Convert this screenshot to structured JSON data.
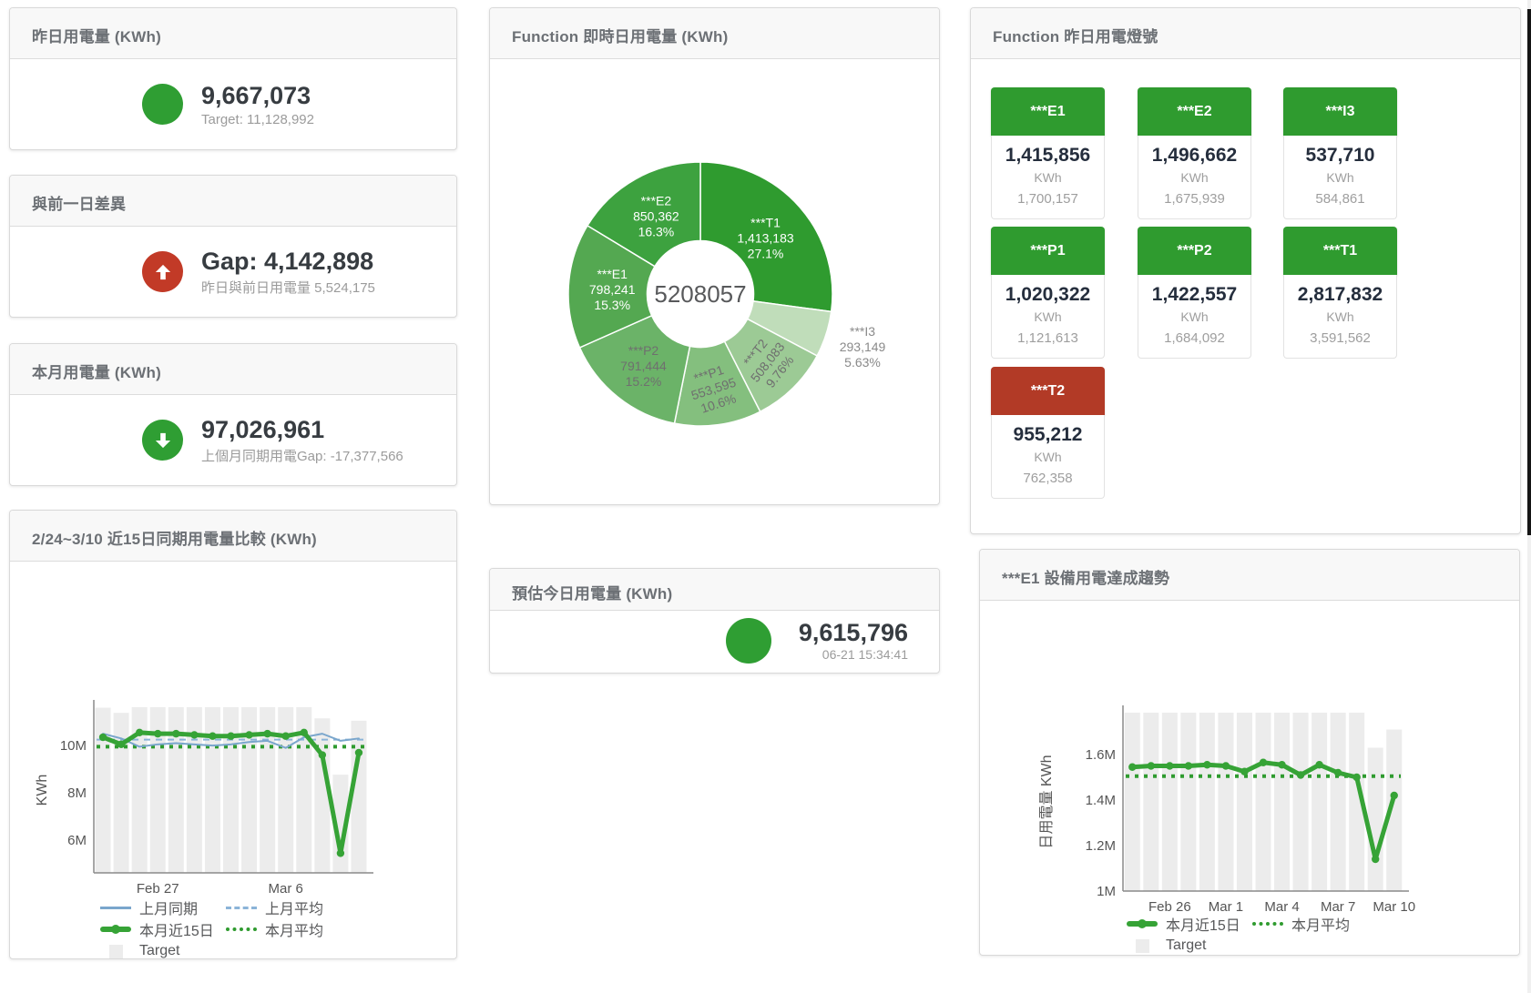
{
  "kpi_cards": [
    {
      "title": "昨日用電量 (KWh)",
      "value": "9,667,073",
      "subtitle": "Target: 11,128,992",
      "icon": "status-circle",
      "icon_color": "#2f9e33"
    },
    {
      "title": "與前一日差異",
      "value": "Gap: 4,142,898",
      "subtitle": "昨日與前日用電量 5,524,175",
      "icon": "arrow-up-circle",
      "icon_color": "#c23a27"
    },
    {
      "title": "本月用電量 (KWh)",
      "value": "97,026,961",
      "subtitle": "上個月同期用電Gap: -17,377,566",
      "icon": "arrow-down-circle",
      "icon_color": "#2f9e33"
    }
  ],
  "estimate_card": {
    "title": "預估今日用電量 (KWh)",
    "value": "9,615,796",
    "subtitle": "06-21 15:34:41",
    "icon": "status-circle",
    "icon_color": "#2f9e33"
  },
  "lights_panel": {
    "title": "Function 昨日用電燈號",
    "tiles": [
      {
        "label": "***E1",
        "value": "1,415,856",
        "unit": "KWh",
        "target": "1,700,157",
        "status_color": "#2f9b2f"
      },
      {
        "label": "***E2",
        "value": "1,496,662",
        "unit": "KWh",
        "target": "1,675,939",
        "status_color": "#2f9b2f"
      },
      {
        "label": "***I3",
        "value": "537,710",
        "unit": "KWh",
        "target": "584,861",
        "status_color": "#2f9b2f"
      },
      {
        "label": "***P1",
        "value": "1,020,322",
        "unit": "KWh",
        "target": "1,121,613",
        "status_color": "#2f9b2f"
      },
      {
        "label": "***P2",
        "value": "1,422,557",
        "unit": "KWh",
        "target": "1,684,092",
        "status_color": "#2f9b2f"
      },
      {
        "label": "***T1",
        "value": "2,817,832",
        "unit": "KWh",
        "target": "3,591,562",
        "status_color": "#2f9b2f"
      },
      {
        "label": "***T2",
        "value": "955,212",
        "unit": "KWh",
        "target": "762,358",
        "status_color": "#b23a26"
      }
    ]
  },
  "chart_data": [
    {
      "type": "pie",
      "title": "Function 即時日用電量 (KWh)",
      "center_total": "5208057",
      "slices": [
        {
          "name": "***T1",
          "value": 1413183,
          "display": "1,413,183",
          "pct_label": "27.1%",
          "color": "#2f9b2f",
          "label_color": "#ffffff",
          "label_r": 95,
          "rotate": 0,
          "placement": "inside"
        },
        {
          "name": "***I3",
          "value": 293149,
          "display": "293,149",
          "pct_label": "5.63%",
          "color": "#c0ddba",
          "label_color": "#8a8a8a",
          "label_r": 187,
          "rotate": 0,
          "placement": "outside"
        },
        {
          "name": "***T2",
          "value": 508083,
          "display": "508,083",
          "pct_label": "9.76%",
          "color": "#9cca95",
          "label_color": "#6f6f6f",
          "label_r": 104,
          "rotate": -52,
          "placement": "inside"
        },
        {
          "name": "***P1",
          "value": 553595,
          "display": "553,595",
          "pct_label": "10.6%",
          "color": "#84bf7e",
          "label_color": "#6f6f6f",
          "label_r": 104,
          "rotate": -18,
          "placement": "inside"
        },
        {
          "name": "***P2",
          "value": 791444,
          "display": "791,444",
          "pct_label": "15.2%",
          "color": "#6bb368",
          "label_color": "#6f6f6f",
          "label_r": 100,
          "rotate": 0,
          "placement": "inside"
        },
        {
          "name": "***E1",
          "value": 798241,
          "display": "798,241",
          "pct_label": "15.3%",
          "color": "#54a851",
          "label_color": "#ffffff",
          "label_r": 97,
          "rotate": 0,
          "placement": "inside"
        },
        {
          "name": "***E2",
          "value": 850362,
          "display": "850,362",
          "pct_label": "16.3%",
          "color": "#3da23f",
          "label_color": "#ffffff",
          "label_r": 99,
          "rotate": 0,
          "placement": "inside"
        }
      ]
    },
    {
      "type": "line+bar",
      "title": "2/24~3/10 近15日同期用電量比較 (KWh)",
      "ylabel": "KWh",
      "ylim": [
        4.62,
        11.62
      ],
      "y_ticks": [
        {
          "v": 6,
          "label": "6M"
        },
        {
          "v": 8,
          "label": "8M"
        },
        {
          "v": 10,
          "label": "10M"
        }
      ],
      "x_ticks": [
        {
          "index": 3,
          "label": "Feb 27"
        },
        {
          "index": 10,
          "label": "Mar 6"
        }
      ],
      "categories": [
        "Feb 24",
        "Feb 25",
        "Feb 26",
        "Feb 27",
        "Feb 28",
        "Mar 1",
        "Mar 2",
        "Mar 3",
        "Mar 4",
        "Mar 5",
        "Mar 6",
        "Mar 7",
        "Mar 8",
        "Mar 9",
        "Mar 10"
      ],
      "unit": "M KWh",
      "series": [
        {
          "name": "上月同期",
          "type": "line",
          "color": "#7aa6cc",
          "width": 2,
          "dots": false,
          "values": [
            10.5,
            10.3,
            9.95,
            10.05,
            10.1,
            10.05,
            10.0,
            10.05,
            10.15,
            10.2,
            9.9,
            10.35,
            10.5,
            10.2,
            10.3
          ]
        },
        {
          "name": "上月平均",
          "type": "constant",
          "color": "#8bb4d8",
          "width": 2,
          "dash": "7 6",
          "value": 10.25
        },
        {
          "name": "本月近15日",
          "type": "line",
          "color": "#36a336",
          "width": 5,
          "dots": true,
          "values": [
            10.35,
            10.05,
            10.55,
            10.5,
            10.5,
            10.45,
            10.4,
            10.4,
            10.45,
            10.5,
            10.4,
            10.55,
            9.6,
            5.45,
            9.7
          ]
        },
        {
          "name": "本月平均",
          "type": "constant",
          "color": "#2f9b2f",
          "width": 4,
          "dash": "4 6",
          "value": 9.95
        },
        {
          "name": "Target",
          "type": "bar",
          "color": "#ececec",
          "values": [
            11.6,
            11.38,
            11.62,
            11.62,
            11.62,
            11.62,
            11.62,
            11.62,
            11.62,
            11.62,
            11.62,
            11.62,
            11.15,
            8.77,
            11.05
          ]
        }
      ]
    },
    {
      "type": "line+bar",
      "title": "***E1 設備用電達成趨勢",
      "ylabel": "日用電量 KWh",
      "ylim": [
        1.0,
        1.784
      ],
      "y_ticks": [
        {
          "v": 1,
          "label": "1M"
        },
        {
          "v": 1.2,
          "label": "1.2M"
        },
        {
          "v": 1.4,
          "label": "1.4M"
        },
        {
          "v": 1.6,
          "label": "1.6M"
        }
      ],
      "x_ticks": [
        {
          "index": 2,
          "label": "Feb 26"
        },
        {
          "index": 5,
          "label": "Mar 1"
        },
        {
          "index": 8,
          "label": "Mar 4"
        },
        {
          "index": 11,
          "label": "Mar 7"
        },
        {
          "index": 14,
          "label": "Mar 10"
        }
      ],
      "categories": [
        "Feb 24",
        "Feb 25",
        "Feb 26",
        "Feb 27",
        "Feb 28",
        "Mar 1",
        "Mar 2",
        "Mar 3",
        "Mar 4",
        "Mar 5",
        "Mar 6",
        "Mar 7",
        "Mar 8",
        "Mar 9",
        "Mar 10"
      ],
      "unit": "M KWh",
      "series": [
        {
          "name": "Target",
          "type": "bar",
          "color": "#ececec",
          "values": [
            1.784,
            1.784,
            1.784,
            1.784,
            1.784,
            1.784,
            1.784,
            1.784,
            1.784,
            1.784,
            1.784,
            1.784,
            1.784,
            1.63,
            1.71
          ]
        },
        {
          "name": "本月近15日",
          "type": "line",
          "color": "#36a336",
          "width": 5,
          "dots": true,
          "values": [
            1.545,
            1.55,
            1.55,
            1.55,
            1.555,
            1.55,
            1.525,
            1.565,
            1.555,
            1.51,
            1.555,
            1.52,
            1.5,
            1.14,
            1.42
          ]
        },
        {
          "name": "本月平均",
          "type": "constant",
          "color": "#2f9b2f",
          "width": 4,
          "dash": "4 6",
          "value": 1.505
        }
      ]
    }
  ]
}
